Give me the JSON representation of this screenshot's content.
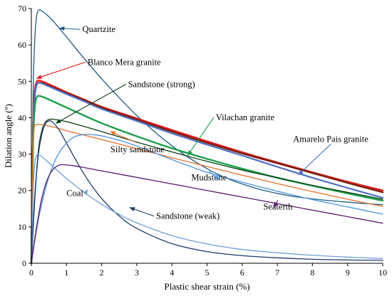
{
  "chart_data": {
    "type": "line",
    "title": "",
    "xlabel": "Plastic shear strain (%)",
    "ylabel": "Dilation angle (º)",
    "xlim": [
      0,
      10
    ],
    "ylim": [
      0,
      70
    ],
    "x_ticks": [
      0,
      1,
      2,
      3,
      4,
      5,
      6,
      7,
      8,
      9,
      10
    ],
    "y_ticks": [
      0,
      10,
      20,
      30,
      40,
      50,
      60,
      70
    ],
    "grid": false,
    "legend": "none",
    "series": [
      {
        "name": "Quartzite",
        "color": "#1f5c85",
        "stroke_width": 1.3,
        "x": [
          0,
          0.05,
          0.1,
          0.15,
          0.2,
          0.25,
          0.3,
          0.4,
          0.6,
          0.8,
          1,
          1.5,
          2,
          2.5,
          3,
          3.5,
          4,
          4.5,
          5,
          5.5,
          6,
          6.5,
          7,
          7.5,
          8,
          8.5,
          9,
          9.5,
          10
        ],
        "y": [
          0,
          46,
          62,
          68,
          69.5,
          69.6,
          69.3,
          68.6,
          66.8,
          64.5,
          62.2,
          56.3,
          50.7,
          45.5,
          40.6,
          36.2,
          32.3,
          28.9,
          26,
          23.6,
          21.8,
          20.3,
          19.2,
          18.3,
          17.7,
          17.2,
          16.8,
          16.4,
          16.1
        ]
      },
      {
        "name": "Blanco Mera granite",
        "color": "#e31a1c",
        "stroke_width": 2.4,
        "x": [
          0,
          0.05,
          0.1,
          0.15,
          0.2,
          0.3,
          0.5,
          1,
          1.5,
          2,
          3,
          4,
          5,
          6,
          7,
          8,
          9,
          10
        ],
        "y": [
          0,
          38,
          47.5,
          49.8,
          50.2,
          50,
          49.2,
          47,
          45,
          43,
          39.8,
          36.6,
          33.5,
          30.5,
          27.7,
          25,
          22.4,
          20
        ]
      },
      {
        "name": "Amarelo Pais granite",
        "color": "#7b1f0f",
        "stroke_width": 2.4,
        "x": [
          0,
          0.05,
          0.1,
          0.15,
          0.2,
          0.3,
          0.5,
          1,
          1.5,
          2,
          3,
          4,
          5,
          6,
          7,
          8,
          9,
          10
        ],
        "y": [
          0,
          37,
          46.5,
          49,
          49.6,
          49.5,
          48.8,
          46.8,
          44.8,
          42.8,
          39.5,
          36.2,
          33.1,
          30.2,
          27.5,
          24.8,
          22.1,
          19.5
        ]
      },
      {
        "name": "Amarelo Pais granite",
        "color": "#4f6fc4",
        "stroke_width": 2.2,
        "x": [
          0,
          0.05,
          0.1,
          0.15,
          0.2,
          0.3,
          0.5,
          1,
          1.5,
          2,
          3,
          4,
          5,
          6,
          7,
          8,
          9,
          10
        ],
        "y": [
          0,
          36,
          46,
          49,
          49.6,
          49.4,
          48.6,
          46.5,
          44.5,
          42.4,
          39.1,
          35.7,
          32.6,
          29.6,
          26.5,
          23.5,
          20.7,
          18
        ]
      },
      {
        "name": "Vilachan granite",
        "color": "#1aa04a",
        "stroke_width": 2.4,
        "x": [
          0,
          0.05,
          0.1,
          0.15,
          0.2,
          0.3,
          0.5,
          1,
          1.5,
          2,
          3,
          4,
          5,
          6,
          7,
          8,
          9,
          10
        ],
        "y": [
          0,
          33,
          43,
          45.5,
          46,
          45.8,
          45,
          42.8,
          40.6,
          38.5,
          34.9,
          31.6,
          28.7,
          26,
          23.5,
          21.3,
          19.2,
          17.2
        ]
      },
      {
        "name": "Sandstone (strong)",
        "color": "#0b3d14",
        "stroke_width": 1.3,
        "x": [
          0,
          0.1,
          0.2,
          0.3,
          0.4,
          0.5,
          0.6,
          0.8,
          1,
          1.5,
          2,
          3,
          4,
          5,
          6,
          7,
          8,
          9,
          10
        ],
        "y": [
          0,
          18,
          31,
          36.5,
          38.8,
          39.5,
          39.6,
          39.3,
          38.9,
          37.6,
          36.2,
          33.3,
          30.6,
          28,
          25.6,
          23.5,
          21.4,
          19.5,
          17.6
        ]
      },
      {
        "name": "Silty sandstone",
        "color": "#e8702a",
        "stroke_width": 1.3,
        "x": [
          0,
          0.04,
          0.08,
          0.12,
          0.2,
          0.4,
          0.8,
          1,
          2,
          3,
          4,
          5,
          6,
          7,
          8,
          9,
          10
        ],
        "y": [
          0,
          30,
          37,
          38,
          38.2,
          37.9,
          37,
          36.4,
          34,
          31.5,
          29,
          26.6,
          24.2,
          21.9,
          19.7,
          17.6,
          15.6
        ]
      },
      {
        "name": "Sandstone (weak)",
        "color": "#1f3a68",
        "stroke_width": 1.3,
        "x": [
          0,
          0.05,
          0.1,
          0.2,
          0.3,
          0.4,
          0.5,
          0.6,
          0.8,
          1,
          1.5,
          2,
          2.5,
          3,
          4,
          5,
          6,
          7,
          8,
          9,
          10
        ],
        "y": [
          0,
          10,
          19,
          30,
          35.5,
          38.3,
          39.1,
          38.8,
          36.5,
          33,
          24.5,
          17.8,
          13,
          9.6,
          5.4,
          3.2,
          2.1,
          1.5,
          1.1,
          0.9,
          0.8
        ]
      },
      {
        "name": "Mudstone",
        "color": "#4a90d9",
        "stroke_width": 1.3,
        "x": [
          0,
          0.2,
          0.4,
          0.6,
          0.8,
          1,
          1.2,
          1.5,
          1.8,
          2,
          2.5,
          3,
          4,
          5,
          6,
          7,
          8,
          9,
          10
        ],
        "y": [
          0,
          12,
          20.5,
          26.5,
          30.5,
          33,
          34.6,
          35.4,
          35.3,
          35,
          33.8,
          32.2,
          28.5,
          25,
          22.3,
          19.8,
          17.5,
          15.5,
          13.5
        ]
      },
      {
        "name": "Coal",
        "color": "#6f9fd8",
        "stroke_width": 1.3,
        "x": [
          0,
          0.05,
          0.1,
          0.15,
          0.2,
          0.3,
          0.5,
          0.8,
          1,
          1.5,
          2,
          2.5,
          3,
          4,
          5,
          6,
          7,
          8,
          9,
          10
        ],
        "y": [
          0,
          20,
          27.5,
          29.6,
          29.9,
          29.3,
          27.6,
          25,
          23.3,
          19.5,
          16.2,
          13.4,
          11.1,
          7.6,
          5.3,
          3.8,
          2.9,
          2.2,
          1.7,
          1.3
        ]
      },
      {
        "name": "Seaterth",
        "color": "#5a1a6e",
        "stroke_width": 1.3,
        "x": [
          0,
          0.1,
          0.2,
          0.3,
          0.4,
          0.5,
          0.6,
          0.7,
          0.8,
          0.9,
          1,
          1.2,
          1.5,
          2,
          3,
          4,
          5,
          6,
          7,
          8,
          9,
          10
        ],
        "y": [
          0,
          7,
          13,
          18,
          21.5,
          24,
          25.6,
          26.5,
          27,
          27.1,
          27,
          26.8,
          26.3,
          25.4,
          23.6,
          21.8,
          20,
          18.2,
          16.4,
          14.6,
          12.8,
          11
        ]
      }
    ],
    "annotations": [
      {
        "text": "Quartzite",
        "text_x": 1.45,
        "text_y": 63.5,
        "target_x": 0.8,
        "target_y": 64.6,
        "color": "#1f5c85"
      },
      {
        "text": "Blanco Mera granite",
        "text_x": 1.6,
        "text_y": 54.5,
        "target_x": 0.15,
        "target_y": 50.8,
        "color": "#e31a1c"
      },
      {
        "text": "Sandstone (strong)",
        "text_x": 2.75,
        "text_y": 48.4,
        "target_x": 0.7,
        "target_y": 38.5,
        "color": "#0b3d14"
      },
      {
        "text": "Vilachan granite",
        "text_x": 5.25,
        "text_y": 39.3,
        "target_x": 4.45,
        "target_y": 29.6,
        "color": "#1aa04a"
      },
      {
        "text": "Amarelo Pais granite",
        "text_x": 7.45,
        "text_y": 33.3,
        "target_x": 7.6,
        "target_y": 24.3,
        "color": "#4f6fc4"
      },
      {
        "text": "Silty sandstone",
        "text_x": 2.25,
        "text_y": 30.5,
        "target_x": 2.25,
        "target_y": 36.2,
        "color": "#e8702a"
      },
      {
        "text": "Mudstone",
        "text_x": 4.55,
        "text_y": 22.8,
        "target_x": 5.35,
        "target_y": 22.9,
        "color": "#4a90d9"
      },
      {
        "text": "Coal",
        "text_x": 1.0,
        "text_y": 18.5,
        "target_x": 1.6,
        "target_y": 20.2,
        "color": "#6f9fd8"
      },
      {
        "text": "Sandstone (weak)",
        "text_x": 3.55,
        "text_y": 12.2,
        "target_x": 2.8,
        "target_y": 15.3,
        "color": "#1f3a68"
      },
      {
        "text": "Seaterth",
        "text_x": 6.6,
        "text_y": 14.8,
        "target_x": 6.9,
        "target_y": 15.4,
        "color": "#5a1a6e"
      }
    ]
  }
}
